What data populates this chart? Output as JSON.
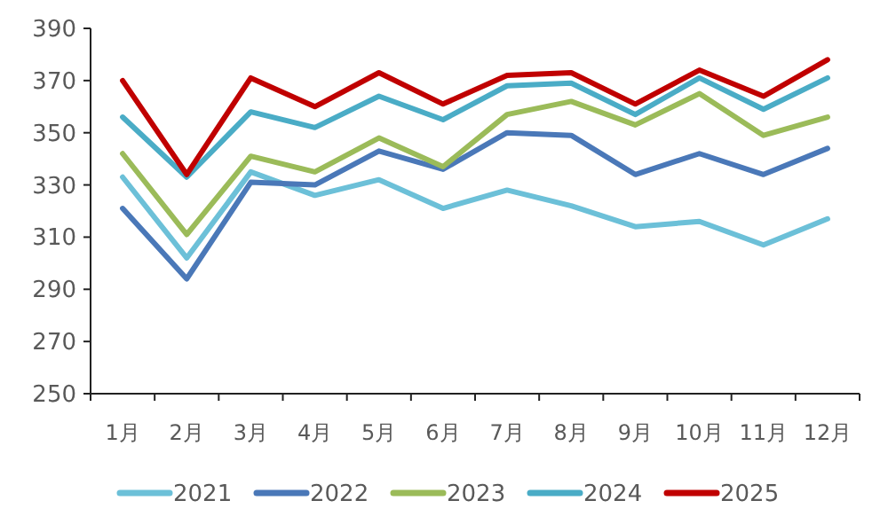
{
  "chart_data": {
    "type": "line",
    "categories": [
      "1月",
      "2月",
      "3月",
      "4月",
      "5月",
      "6月",
      "7月",
      "8月",
      "9月",
      "10月",
      "11月",
      "12月"
    ],
    "series": [
      {
        "name": "2021",
        "color": "#6cc0d8",
        "values": [
          333,
          302,
          335,
          326,
          332,
          321,
          328,
          322,
          314,
          316,
          307,
          317
        ]
      },
      {
        "name": "2022",
        "color": "#4a78b8",
        "values": [
          321,
          294,
          331,
          330,
          343,
          336,
          350,
          349,
          334,
          342,
          334,
          344
        ]
      },
      {
        "name": "2023",
        "color": "#9bbb59",
        "values": [
          342,
          311,
          341,
          335,
          348,
          337,
          357,
          362,
          353,
          365,
          349,
          356
        ]
      },
      {
        "name": "2024",
        "color": "#4aacc6",
        "values": [
          356,
          333,
          358,
          352,
          364,
          355,
          368,
          369,
          357,
          371,
          359,
          371
        ]
      },
      {
        "name": "2025",
        "color": "#c00000",
        "values": [
          370,
          334,
          371,
          360,
          373,
          361,
          372,
          373,
          361,
          374,
          364,
          378
        ]
      }
    ],
    "ylim": [
      250,
      390
    ],
    "yticks": [
      250,
      270,
      290,
      310,
      330,
      350,
      370,
      390
    ],
    "legend": "bottom"
  }
}
